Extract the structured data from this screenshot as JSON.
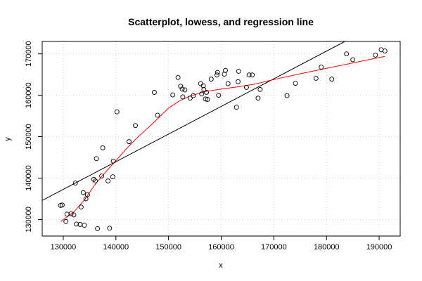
{
  "chart_data": {
    "type": "scatter",
    "title": "Scatterplot, lowess, and regression line",
    "xlabel": "x",
    "ylabel": "y",
    "xlim": [
      126000,
      194000
    ],
    "ylim": [
      126000,
      173000
    ],
    "xticks": [
      130000,
      140000,
      150000,
      160000,
      170000,
      180000,
      190000
    ],
    "yticks": [
      130000,
      140000,
      150000,
      160000,
      170000
    ],
    "grid": true,
    "points": [
      {
        "x": 129500,
        "y": 133400
      },
      {
        "x": 129800,
        "y": 133500
      },
      {
        "x": 130500,
        "y": 129500
      },
      {
        "x": 130700,
        "y": 131300
      },
      {
        "x": 131500,
        "y": 131400
      },
      {
        "x": 132000,
        "y": 131100
      },
      {
        "x": 132300,
        "y": 138800
      },
      {
        "x": 132500,
        "y": 128900
      },
      {
        "x": 133200,
        "y": 128800
      },
      {
        "x": 133400,
        "y": 133000
      },
      {
        "x": 133800,
        "y": 136500
      },
      {
        "x": 134000,
        "y": 128600
      },
      {
        "x": 134300,
        "y": 135000
      },
      {
        "x": 134600,
        "y": 136000
      },
      {
        "x": 135800,
        "y": 139700
      },
      {
        "x": 136100,
        "y": 139300
      },
      {
        "x": 136300,
        "y": 144700
      },
      {
        "x": 136500,
        "y": 127800
      },
      {
        "x": 137300,
        "y": 140500
      },
      {
        "x": 137500,
        "y": 147300
      },
      {
        "x": 138500,
        "y": 139300
      },
      {
        "x": 138800,
        "y": 127900
      },
      {
        "x": 139400,
        "y": 140300
      },
      {
        "x": 139500,
        "y": 144100
      },
      {
        "x": 140200,
        "y": 156000
      },
      {
        "x": 142500,
        "y": 148800
      },
      {
        "x": 143700,
        "y": 152700
      },
      {
        "x": 147300,
        "y": 160700
      },
      {
        "x": 147900,
        "y": 155200
      },
      {
        "x": 150800,
        "y": 160100
      },
      {
        "x": 151800,
        "y": 164300
      },
      {
        "x": 152300,
        "y": 162200
      },
      {
        "x": 152600,
        "y": 161500
      },
      {
        "x": 152700,
        "y": 159600
      },
      {
        "x": 153100,
        "y": 161300
      },
      {
        "x": 154100,
        "y": 159300
      },
      {
        "x": 154700,
        "y": 159900
      },
      {
        "x": 156100,
        "y": 162800
      },
      {
        "x": 156300,
        "y": 160300
      },
      {
        "x": 156600,
        "y": 162300
      },
      {
        "x": 156700,
        "y": 161400
      },
      {
        "x": 157000,
        "y": 159100
      },
      {
        "x": 157200,
        "y": 160700
      },
      {
        "x": 157400,
        "y": 159000
      },
      {
        "x": 158100,
        "y": 163900
      },
      {
        "x": 159200,
        "y": 164900
      },
      {
        "x": 159300,
        "y": 165500
      },
      {
        "x": 159500,
        "y": 160000
      },
      {
        "x": 160600,
        "y": 165100
      },
      {
        "x": 160800,
        "y": 166000
      },
      {
        "x": 161300,
        "y": 162800
      },
      {
        "x": 162900,
        "y": 157100
      },
      {
        "x": 163200,
        "y": 163300
      },
      {
        "x": 163300,
        "y": 165800
      },
      {
        "x": 164800,
        "y": 161900
      },
      {
        "x": 165300,
        "y": 164900
      },
      {
        "x": 165900,
        "y": 164900
      },
      {
        "x": 167000,
        "y": 159300
      },
      {
        "x": 167400,
        "y": 161400
      },
      {
        "x": 172500,
        "y": 159900
      },
      {
        "x": 174100,
        "y": 162900
      },
      {
        "x": 178000,
        "y": 164100
      },
      {
        "x": 179000,
        "y": 166800
      },
      {
        "x": 181000,
        "y": 163900
      },
      {
        "x": 183800,
        "y": 170000
      },
      {
        "x": 185000,
        "y": 168600
      },
      {
        "x": 189300,
        "y": 169700
      },
      {
        "x": 190400,
        "y": 171000
      },
      {
        "x": 191100,
        "y": 170700
      }
    ],
    "lowess": [
      {
        "x": 129500,
        "y": 129500
      },
      {
        "x": 132000,
        "y": 131800
      },
      {
        "x": 134000,
        "y": 134700
      },
      {
        "x": 136000,
        "y": 138400
      },
      {
        "x": 138000,
        "y": 141400
      },
      {
        "x": 140000,
        "y": 144200
      },
      {
        "x": 142000,
        "y": 147100
      },
      {
        "x": 144000,
        "y": 149700
      },
      {
        "x": 147000,
        "y": 153200
      },
      {
        "x": 150000,
        "y": 156900
      },
      {
        "x": 152000,
        "y": 158600
      },
      {
        "x": 154000,
        "y": 159800
      },
      {
        "x": 157000,
        "y": 160900
      },
      {
        "x": 160000,
        "y": 161500
      },
      {
        "x": 163000,
        "y": 162000
      },
      {
        "x": 166000,
        "y": 162600
      },
      {
        "x": 170000,
        "y": 163800
      },
      {
        "x": 175000,
        "y": 165200
      },
      {
        "x": 180000,
        "y": 166500
      },
      {
        "x": 185000,
        "y": 167800
      },
      {
        "x": 191100,
        "y": 169400
      }
    ],
    "regression": [
      {
        "x": 126000,
        "y": 134600
      },
      {
        "x": 183500,
        "y": 173000
      }
    ]
  }
}
